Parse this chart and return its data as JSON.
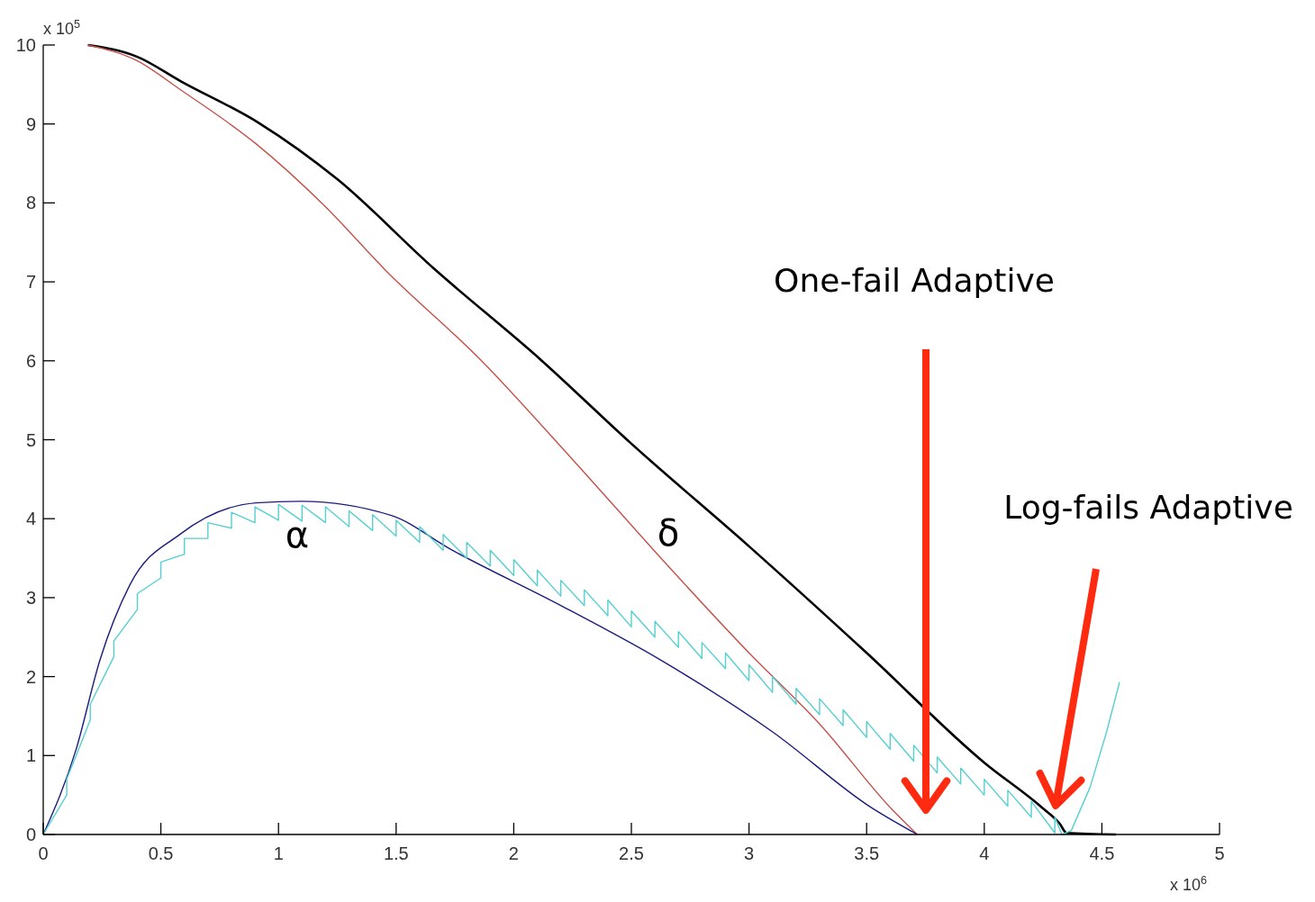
{
  "chart_data": {
    "type": "line",
    "xlim": [
      0,
      5
    ],
    "ylim": [
      0,
      10
    ],
    "xticks": [
      0,
      0.5,
      1,
      1.5,
      2,
      2.5,
      3,
      3.5,
      4,
      4.5,
      5
    ],
    "yticks": [
      0,
      1,
      2,
      3,
      4,
      5,
      6,
      7,
      8,
      9,
      10
    ],
    "series": [
      {
        "color": "#000000",
        "x": [
          0.19,
          0.4,
          0.585,
          0.918,
          1.25,
          1.656,
          2.116,
          2.5,
          3,
          3.5,
          4,
          4.246,
          4.32,
          4.35,
          4.56
        ],
        "values": [
          10,
          9.85,
          9.54,
          9.01,
          8.3,
          7.18,
          6.01,
          4.95,
          3.65,
          2.3,
          0.91,
          0.34,
          0.14,
          0.02,
          0
        ]
      },
      {
        "color": "#c8504a",
        "x": [
          0.19,
          0.4,
          0.585,
          0.904,
          1.2,
          1.454,
          1.86,
          2.25,
          2.65,
          3,
          3.3,
          3.61,
          3.715
        ],
        "values": [
          10,
          9.8,
          9.43,
          8.75,
          7.95,
          7.15,
          6.01,
          4.75,
          3.42,
          2.3,
          1.4,
          0.31,
          0
        ]
      },
      {
        "color": "#1c1c80",
        "x": [
          0,
          0.139,
          0.241,
          0.368,
          0.585,
          0.904,
          1.096,
          1.48,
          1.733,
          2.2,
          2.624,
          3.1,
          3.52,
          3.715
        ],
        "values": [
          0,
          1.07,
          2.21,
          3.16,
          3.81,
          4.2,
          4.22,
          4.04,
          3.61,
          2.9,
          2.21,
          1.3,
          0.34,
          0
        ]
      },
      {
        "color": "#55d0d0",
        "x": [
          0,
          0.1,
          0.1,
          0.2,
          0.2,
          0.3,
          0.3,
          0.4,
          0.4,
          0.5,
          0.5,
          0.6,
          0.6,
          0.7,
          0.7,
          0.8,
          0.8,
          0.9,
          0.9,
          1.0,
          1.0,
          1.1,
          1.1,
          1.2,
          1.2,
          1.3,
          1.3,
          1.4,
          1.4,
          1.5,
          1.5,
          1.6,
          1.6,
          1.7,
          1.7,
          1.8,
          1.8,
          1.9,
          1.9,
          2.0,
          2.0,
          2.1,
          2.1,
          2.2,
          2.2,
          2.3,
          2.3,
          2.4,
          2.4,
          2.5,
          2.5,
          2.6,
          2.6,
          2.7,
          2.7,
          2.8,
          2.8,
          2.9,
          2.9,
          3.0,
          3.0,
          3.1,
          3.1,
          3.2,
          3.2,
          3.3,
          3.3,
          3.4,
          3.4,
          3.5,
          3.5,
          3.6,
          3.6,
          3.7,
          3.7,
          3.8,
          3.8,
          3.9,
          3.9,
          4.0,
          4.0,
          4.1,
          4.1,
          4.2,
          4.2,
          4.3,
          4.3,
          4.33,
          4.37,
          4.45,
          4.52,
          4.575
        ],
        "values": [
          0,
          0.5,
          0.7,
          1.45,
          1.65,
          2.25,
          2.45,
          2.85,
          3.05,
          3.25,
          3.45,
          3.55,
          3.75,
          3.75,
          3.95,
          3.88,
          4.08,
          3.95,
          4.15,
          3.98,
          4.18,
          3.97,
          4.17,
          3.95,
          4.15,
          3.9,
          4.1,
          3.85,
          4.05,
          3.78,
          3.98,
          3.7,
          3.9,
          3.6,
          3.8,
          3.5,
          3.7,
          3.4,
          3.6,
          3.28,
          3.48,
          3.15,
          3.35,
          3.02,
          3.22,
          2.9,
          3.1,
          2.77,
          2.97,
          2.63,
          2.83,
          2.5,
          2.7,
          2.37,
          2.57,
          2.23,
          2.43,
          2.1,
          2.3,
          1.95,
          2.15,
          1.8,
          2.0,
          1.65,
          1.85,
          1.52,
          1.72,
          1.38,
          1.58,
          1.23,
          1.43,
          1.08,
          1.28,
          0.93,
          1.13,
          0.78,
          0.98,
          0.64,
          0.84,
          0.5,
          0.7,
          0.36,
          0.56,
          0.22,
          0.42,
          0.02,
          0.22,
          0,
          0.05,
          0.6,
          1.3,
          1.93
        ]
      }
    ],
    "annotations": [
      "x 10$^{5}$",
      "x 10$^{6}$",
      "α",
      "δ",
      "One-fail Adaptive",
      "Log-fails Adaptive"
    ]
  }
}
